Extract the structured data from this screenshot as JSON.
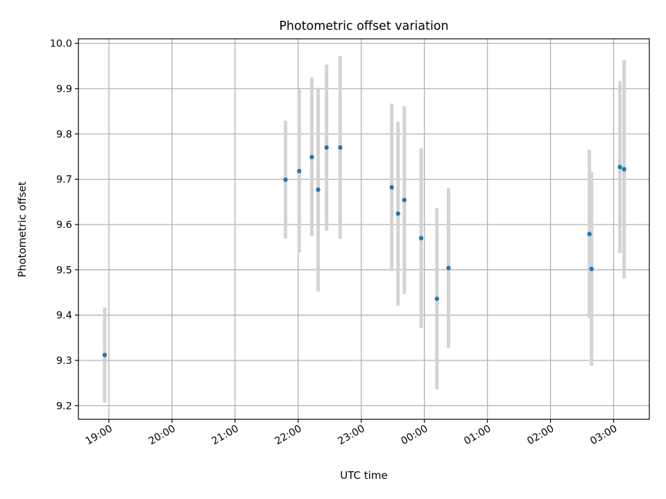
{
  "chart_data": {
    "type": "scatter",
    "title": "Photometric offset variation",
    "xlabel": "UTC time",
    "ylabel": "Photometric offset",
    "x_unit": "UTC time (hh:mm), points span midnight",
    "x_ticks": [
      "19:00",
      "20:00",
      "21:00",
      "22:00",
      "23:00",
      "00:00",
      "01:00",
      "02:00",
      "03:00"
    ],
    "y_ticks": [
      "9.2",
      "9.3",
      "9.4",
      "9.5",
      "9.6",
      "9.7",
      "9.8",
      "9.9",
      "10.0"
    ],
    "xlim": [
      "18:31",
      "03:34"
    ],
    "ylim": [
      9.17,
      10.01
    ],
    "grid": true,
    "legend": "none",
    "colors": {
      "point": "#1f77b4",
      "errorbar": "#d3d3d3",
      "grid": "#b0b0b0"
    },
    "points": [
      {
        "x": "18:56",
        "y": 9.312,
        "yerr": 0.105
      },
      {
        "x": "21:48",
        "y": 9.699,
        "yerr": 0.13
      },
      {
        "x": "22:01",
        "y": 9.718,
        "yerr": 0.18
      },
      {
        "x": "22:13",
        "y": 9.749,
        "yerr": 0.175
      },
      {
        "x": "22:19",
        "y": 9.677,
        "yerr": 0.225
      },
      {
        "x": "22:27",
        "y": 9.77,
        "yerr": 0.183
      },
      {
        "x": "22:40",
        "y": 9.77,
        "yerr": 0.202
      },
      {
        "x": "23:29",
        "y": 9.682,
        "yerr": 0.185
      },
      {
        "x": "23:35",
        "y": 9.624,
        "yerr": 0.203
      },
      {
        "x": "23:41",
        "y": 9.654,
        "yerr": 0.207
      },
      {
        "x": "23:57",
        "y": 9.57,
        "yerr": 0.198
      },
      {
        "x": "00:12",
        "y": 9.436,
        "yerr": 0.2
      },
      {
        "x": "00:23",
        "y": 9.504,
        "yerr": 0.176
      },
      {
        "x": "02:37",
        "y": 9.579,
        "yerr": 0.186
      },
      {
        "x": "02:39",
        "y": 9.502,
        "yerr": 0.214
      },
      {
        "x": "03:06",
        "y": 9.727,
        "yerr": 0.19
      },
      {
        "x": "03:10",
        "y": 9.722,
        "yerr": 0.241
      }
    ]
  }
}
